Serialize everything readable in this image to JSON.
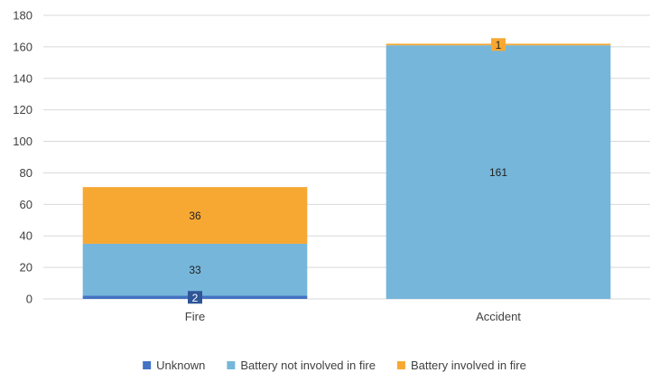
{
  "chart_data": {
    "type": "bar",
    "stacked": true,
    "categories": [
      "Fire",
      "Accident"
    ],
    "series": [
      {
        "name": "Unknown",
        "values": [
          2,
          0
        ],
        "color": "#4472c4"
      },
      {
        "name": "Battery not involved in fire",
        "values": [
          33,
          161
        ],
        "color": "#76b6da"
      },
      {
        "name": "Battery involved in fire",
        "values": [
          36,
          1
        ],
        "color": "#f7a833"
      }
    ],
    "data_labels": [
      [
        "2",
        null
      ],
      [
        "33",
        "161"
      ],
      [
        "36",
        "1"
      ]
    ],
    "ylim": [
      0,
      180
    ],
    "yticks": [
      0,
      20,
      40,
      60,
      80,
      100,
      120,
      140,
      160,
      180
    ],
    "grid": true,
    "legend_position": "bottom"
  }
}
